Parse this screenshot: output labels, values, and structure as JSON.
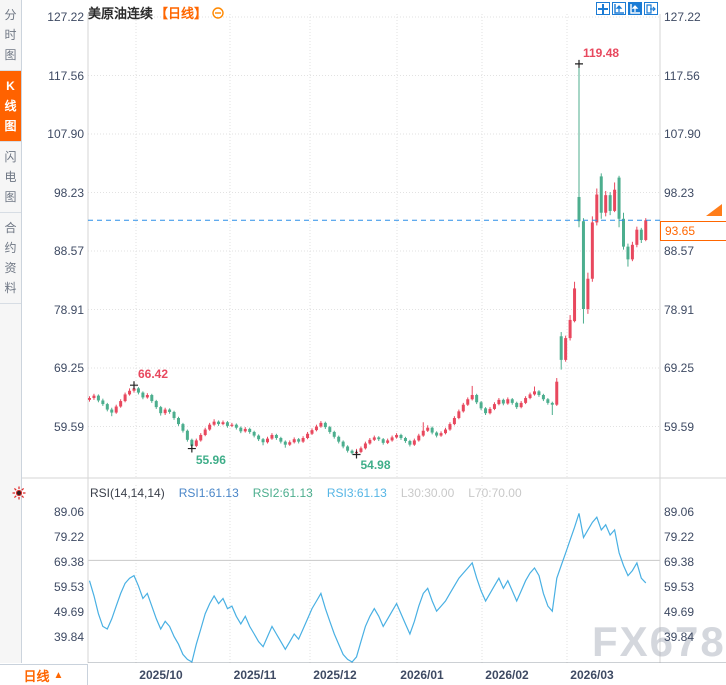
{
  "header": {
    "title": "美原油连续",
    "period": "【日线】"
  },
  "sidebar": {
    "tabs": [
      {
        "label": "分时图",
        "active": false
      },
      {
        "label": "K线图",
        "active": true
      },
      {
        "label": "闪电图",
        "active": false
      },
      {
        "label": "合约资料",
        "active": false
      }
    ]
  },
  "toolbar": {
    "icons": [
      "crosshair-tool",
      "axis-scale",
      "axis-scale-filled",
      "exit"
    ]
  },
  "rsi": {
    "name": "RSI(14,14,14)",
    "rsi1": "RSI1:61.13",
    "rsi2": "RSI2:61.13",
    "rsi3": "RSI3:61.13",
    "l30": "L30:30.00",
    "l70": "L70:70.00"
  },
  "price_marker": {
    "value": "93.65"
  },
  "bottom": {
    "period": "日线",
    "arrow": "▲"
  },
  "watermark": "FX678",
  "colors": {
    "accent_orange": "#ff6600",
    "up": "#e8485e",
    "down": "#4cae8e",
    "rsi_line": "#49b0e3",
    "price_line": "#2b8fe8",
    "axis_text": "#3e4a63",
    "grid": "#e2e2e2",
    "toolbar_blue": "#1c7cd5"
  },
  "chart_data": [
    {
      "type": "candlestick",
      "title": "美原油连续 日线",
      "x_axis_labels": [
        "2025/10",
        "2025/11",
        "2025/12",
        "2026/01",
        "2026/02",
        "2026/03"
      ],
      "y_axis_labels": [
        "127.22",
        "117.56",
        "107.90",
        "98.23",
        "88.57",
        "78.91",
        "69.25",
        "59.59"
      ],
      "y_axis_values": [
        127.22,
        117.56,
        107.9,
        98.23,
        88.57,
        78.91,
        69.25,
        59.59
      ],
      "current_price": 93.65,
      "grid": "dotted",
      "annotations": [
        {
          "text": "66.42",
          "price": 66.42,
          "candle_index": 10,
          "color": "red",
          "side": "above"
        },
        {
          "text": "55.96",
          "price": 55.96,
          "candle_index": 23,
          "color": "green",
          "side": "below"
        },
        {
          "text": "54.98",
          "price": 54.98,
          "candle_index": 60,
          "color": "green",
          "side": "below"
        },
        {
          "text": "119.48",
          "price": 119.48,
          "candle_index": 110,
          "color": "red",
          "side": "above"
        }
      ],
      "candles": [
        [
          64.0,
          64.6,
          63.7,
          64.3
        ],
        [
          64.3,
          65.0,
          64.0,
          64.7
        ],
        [
          64.7,
          64.9,
          63.6,
          63.9
        ],
        [
          63.9,
          64.2,
          63.0,
          63.3
        ],
        [
          63.3,
          63.5,
          62.1,
          62.4
        ],
        [
          62.4,
          62.7,
          61.3,
          61.9
        ],
        [
          61.9,
          63.2,
          61.7,
          62.9
        ],
        [
          62.9,
          64.1,
          62.7,
          63.8
        ],
        [
          63.8,
          65.2,
          63.6,
          64.9
        ],
        [
          64.9,
          65.9,
          64.7,
          65.5
        ],
        [
          65.5,
          66.42,
          65.2,
          65.9
        ],
        [
          65.9,
          66.1,
          64.9,
          65.2
        ],
        [
          65.2,
          65.4,
          64.1,
          64.4
        ],
        [
          64.4,
          65.1,
          64.2,
          64.8
        ],
        [
          64.8,
          65.0,
          63.5,
          63.8
        ],
        [
          63.8,
          64.0,
          62.5,
          62.8
        ],
        [
          62.8,
          63.0,
          61.4,
          61.8
        ],
        [
          61.8,
          62.7,
          61.5,
          62.4
        ],
        [
          62.4,
          62.6,
          61.7,
          62.0
        ],
        [
          62.0,
          62.2,
          60.7,
          61.0
        ],
        [
          61.0,
          61.2,
          59.7,
          60.0
        ],
        [
          60.0,
          60.2,
          58.6,
          58.9
        ],
        [
          58.9,
          59.1,
          57.1,
          57.4
        ],
        [
          57.4,
          57.6,
          55.96,
          56.4
        ],
        [
          56.4,
          57.6,
          56.2,
          57.3
        ],
        [
          57.3,
          58.5,
          57.1,
          58.2
        ],
        [
          58.2,
          59.4,
          58.0,
          59.1
        ],
        [
          59.1,
          60.2,
          58.9,
          59.9
        ],
        [
          59.9,
          60.8,
          59.7,
          60.4
        ],
        [
          60.4,
          60.6,
          59.7,
          60.0
        ],
        [
          60.0,
          60.6,
          59.8,
          60.3
        ],
        [
          60.3,
          60.5,
          59.4,
          59.7
        ],
        [
          59.7,
          60.2,
          59.5,
          59.9
        ],
        [
          59.9,
          60.1,
          59.1,
          59.4
        ],
        [
          59.4,
          59.6,
          58.5,
          58.8
        ],
        [
          58.8,
          59.5,
          58.6,
          59.2
        ],
        [
          59.2,
          59.4,
          58.4,
          58.7
        ],
        [
          58.7,
          58.9,
          57.8,
          58.1
        ],
        [
          58.1,
          58.3,
          57.2,
          57.5
        ],
        [
          57.5,
          57.7,
          56.5,
          57.0
        ],
        [
          57.0,
          57.9,
          56.8,
          57.6
        ],
        [
          57.6,
          58.5,
          57.4,
          58.2
        ],
        [
          58.2,
          58.4,
          57.4,
          57.7
        ],
        [
          57.7,
          57.9,
          56.8,
          57.1
        ],
        [
          57.1,
          57.3,
          56.1,
          56.6
        ],
        [
          56.6,
          57.3,
          56.4,
          57.0
        ],
        [
          57.0,
          57.8,
          56.8,
          57.5
        ],
        [
          57.5,
          57.7,
          56.8,
          57.1
        ],
        [
          57.1,
          58.0,
          56.9,
          57.7
        ],
        [
          57.7,
          58.7,
          57.5,
          58.4
        ],
        [
          58.4,
          59.3,
          58.2,
          59.0
        ],
        [
          59.0,
          59.9,
          58.8,
          59.6
        ],
        [
          59.6,
          60.5,
          59.4,
          60.2
        ],
        [
          60.2,
          60.4,
          59.2,
          59.5
        ],
        [
          59.5,
          59.7,
          58.4,
          58.7
        ],
        [
          58.7,
          58.9,
          57.6,
          57.9
        ],
        [
          57.9,
          58.1,
          56.8,
          57.1
        ],
        [
          57.1,
          57.3,
          56.0,
          56.3
        ],
        [
          56.3,
          56.5,
          55.3,
          55.6
        ],
        [
          55.6,
          55.8,
          54.99,
          55.2
        ],
        [
          55.2,
          55.9,
          54.98,
          55.4
        ],
        [
          55.4,
          56.3,
          55.2,
          56.0
        ],
        [
          56.0,
          57.1,
          55.8,
          56.8
        ],
        [
          56.8,
          57.7,
          56.6,
          57.4
        ],
        [
          57.4,
          58.1,
          57.2,
          57.8
        ],
        [
          57.8,
          58.0,
          57.2,
          57.5
        ],
        [
          57.5,
          57.7,
          56.6,
          56.9
        ],
        [
          56.9,
          57.6,
          56.7,
          57.3
        ],
        [
          57.3,
          58.1,
          57.1,
          57.8
        ],
        [
          57.8,
          58.5,
          57.6,
          58.2
        ],
        [
          58.2,
          58.4,
          57.4,
          57.7
        ],
        [
          57.7,
          57.9,
          56.9,
          57.2
        ],
        [
          57.2,
          57.4,
          56.3,
          56.6
        ],
        [
          56.6,
          57.6,
          56.4,
          57.3
        ],
        [
          57.3,
          58.4,
          57.1,
          58.1
        ],
        [
          58.1,
          60.3,
          57.9,
          58.9
        ],
        [
          58.9,
          59.8,
          58.7,
          59.4
        ],
        [
          59.4,
          59.6,
          58.3,
          58.6
        ],
        [
          58.6,
          58.8,
          57.8,
          58.1
        ],
        [
          58.1,
          58.8,
          57.9,
          58.5
        ],
        [
          58.5,
          59.4,
          58.3,
          59.1
        ],
        [
          59.1,
          60.3,
          58.9,
          60.0
        ],
        [
          60.0,
          61.3,
          59.8,
          61.0
        ],
        [
          61.0,
          62.4,
          60.8,
          62.1
        ],
        [
          62.1,
          63.5,
          61.9,
          63.2
        ],
        [
          63.2,
          64.4,
          63.0,
          64.1
        ],
        [
          64.1,
          66.3,
          63.9,
          64.8
        ],
        [
          64.8,
          65.0,
          63.3,
          63.6
        ],
        [
          63.6,
          63.8,
          62.3,
          62.6
        ],
        [
          62.6,
          62.8,
          61.5,
          61.8
        ],
        [
          61.8,
          62.8,
          61.6,
          62.5
        ],
        [
          62.5,
          63.6,
          62.3,
          63.3
        ],
        [
          63.3,
          64.3,
          63.1,
          64.0
        ],
        [
          64.0,
          64.2,
          63.1,
          63.4
        ],
        [
          63.4,
          64.4,
          63.2,
          64.1
        ],
        [
          64.1,
          64.3,
          63.2,
          63.5
        ],
        [
          63.5,
          63.7,
          62.5,
          62.8
        ],
        [
          62.8,
          63.8,
          62.6,
          63.5
        ],
        [
          63.5,
          64.6,
          63.3,
          64.3
        ],
        [
          64.3,
          65.2,
          64.1,
          64.9
        ],
        [
          64.9,
          66.2,
          64.7,
          65.4
        ],
        [
          65.4,
          65.6,
          64.5,
          64.8
        ],
        [
          64.8,
          65.0,
          63.8,
          64.1
        ],
        [
          64.1,
          64.3,
          63.2,
          63.5
        ],
        [
          63.5,
          63.7,
          61.5,
          63.2
        ],
        [
          63.2,
          67.6,
          63.0,
          67.0
        ],
        [
          74.5,
          75.2,
          69.0,
          70.6
        ],
        [
          70.6,
          74.6,
          70.3,
          74.2
        ],
        [
          74.2,
          78.0,
          73.8,
          77.2
        ],
        [
          77.0,
          83.5,
          76.8,
          82.4
        ],
        [
          97.5,
          119.48,
          92.5,
          93.5
        ],
        [
          93.5,
          94.0,
          76.6,
          79.0
        ],
        [
          79.0,
          85.0,
          78.2,
          84.0
        ],
        [
          84.0,
          94.3,
          83.5,
          93.3
        ],
        [
          93.3,
          98.9,
          92.8,
          97.9
        ],
        [
          100.9,
          101.4,
          93.9,
          94.9
        ],
        [
          94.9,
          98.5,
          94.3,
          97.8
        ],
        [
          97.8,
          98.3,
          94.5,
          95.2
        ],
        [
          95.2,
          99.9,
          95.0,
          98.7
        ],
        [
          100.7,
          101.0,
          92.5,
          93.9
        ],
        [
          93.9,
          94.9,
          88.8,
          89.3
        ],
        [
          89.3,
          89.8,
          86.0,
          87.2
        ],
        [
          87.2,
          90.1,
          86.9,
          89.6
        ],
        [
          89.6,
          92.6,
          89.2,
          92.1
        ],
        [
          92.1,
          92.4,
          89.9,
          90.4
        ],
        [
          90.4,
          94.0,
          90.2,
          93.65
        ]
      ]
    },
    {
      "type": "line",
      "name": "RSI(14,14,14)",
      "legend": [
        "RSI1:61.13",
        "RSI2:61.13",
        "RSI3:61.13",
        "L30:30.00",
        "L70:70.00"
      ],
      "y_axis_labels": [
        "89.06",
        "79.22",
        "69.38",
        "59.53",
        "49.69",
        "39.84"
      ],
      "y_axis_values": [
        89.06,
        79.22,
        69.38,
        59.53,
        49.69,
        39.84
      ],
      "levels": {
        "L30": 30.0,
        "L70": 70.0
      },
      "values": [
        62,
        56,
        49,
        44,
        43,
        47,
        52,
        57,
        61,
        63,
        64,
        60,
        55,
        57,
        52,
        47,
        43,
        46,
        44,
        40,
        37,
        33,
        31,
        30,
        37,
        43,
        49,
        53,
        56,
        53,
        55,
        51,
        52,
        48,
        45,
        48,
        44,
        41,
        38,
        36,
        40,
        44,
        41,
        38,
        35,
        38,
        41,
        39,
        43,
        47,
        51,
        54,
        57,
        51,
        46,
        41,
        37,
        33,
        31,
        30,
        32,
        38,
        44,
        48,
        51,
        48,
        44,
        47,
        50,
        53,
        49,
        45,
        41,
        46,
        52,
        57,
        59,
        54,
        50,
        52,
        54,
        57,
        60,
        63,
        65,
        67,
        69,
        63,
        58,
        54,
        57,
        60,
        63,
        59,
        62,
        58,
        54,
        58,
        62,
        65,
        67,
        64,
        57,
        52,
        50,
        63,
        68,
        73,
        78,
        83,
        88.5,
        79,
        82,
        85,
        87,
        82,
        84,
        80,
        82,
        73,
        68,
        64,
        66,
        69,
        63,
        61.13
      ]
    }
  ]
}
